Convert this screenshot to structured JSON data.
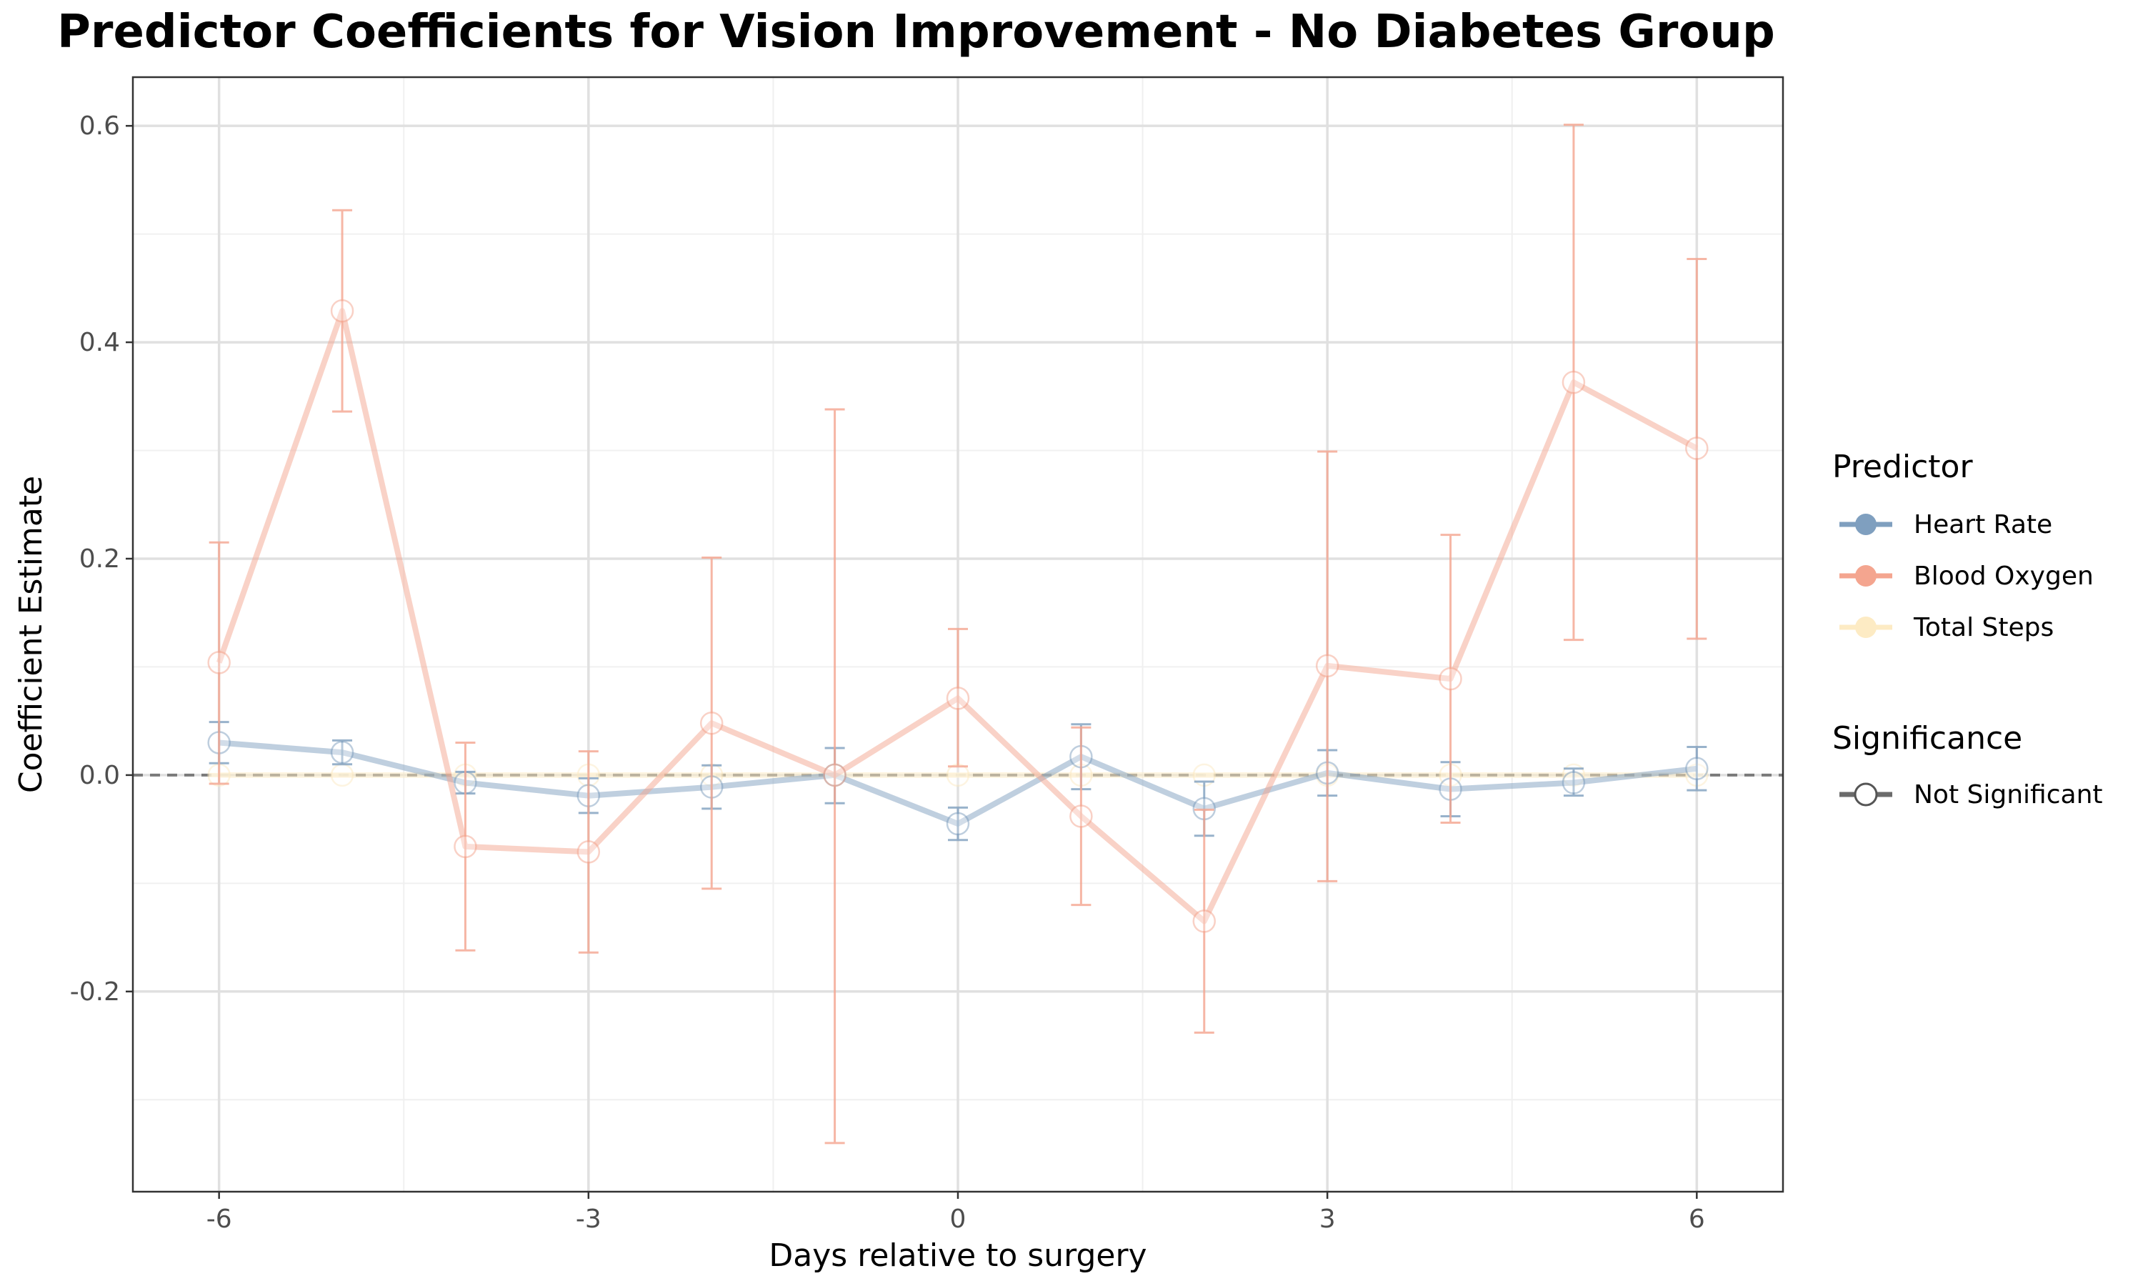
{
  "chart_data": {
    "type": "line",
    "title": "Predictor Coefficients for Vision Improvement - No Diabetes Group",
    "xlabel": "Days relative to surgery",
    "ylabel": "Coefficient Estimate",
    "x": [
      -6,
      -5,
      -4,
      -3,
      -2,
      -1,
      0,
      1,
      2,
      3,
      4,
      5,
      6
    ],
    "xlim": [
      -6.7,
      6.7
    ],
    "ylim": [
      -0.385,
      0.645
    ],
    "x_ticks": [
      -6,
      -3,
      0,
      3,
      6
    ],
    "x_tick_labels": [
      "-6",
      "-3",
      "0",
      "3",
      "6"
    ],
    "y_ticks": [
      -0.2,
      0.0,
      0.2,
      0.4,
      0.6
    ],
    "y_tick_labels": [
      "-0.2",
      "0.0",
      "0.2",
      "0.4",
      "0.6"
    ],
    "reference_line": 0,
    "grid": true,
    "legend_position": "right",
    "series": [
      {
        "name": "Heart Rate",
        "color": "#7f9fbf",
        "values": [
          0.03,
          0.021,
          -0.007,
          -0.019,
          -0.011,
          0.0,
          -0.045,
          0.017,
          -0.031,
          0.002,
          -0.013,
          -0.007,
          0.006
        ],
        "lower": [
          0.011,
          0.01,
          -0.017,
          -0.035,
          -0.031,
          -0.026,
          -0.06,
          -0.013,
          -0.056,
          -0.019,
          -0.038,
          -0.019,
          -0.014
        ],
        "upper": [
          0.049,
          0.032,
          0.003,
          -0.003,
          0.009,
          0.025,
          -0.03,
          0.047,
          -0.006,
          0.023,
          0.012,
          0.006,
          0.026
        ]
      },
      {
        "name": "Blood Oxygen",
        "color": "#f4a58f",
        "values": [
          0.104,
          0.429,
          -0.066,
          -0.071,
          0.048,
          0.0,
          0.071,
          -0.038,
          -0.135,
          0.101,
          0.089,
          0.363,
          0.302
        ],
        "lower": [
          -0.008,
          0.336,
          -0.162,
          -0.164,
          -0.105,
          -0.34,
          0.008,
          -0.12,
          -0.238,
          -0.098,
          -0.044,
          0.125,
          0.126
        ],
        "upper": [
          0.215,
          0.522,
          0.03,
          0.022,
          0.201,
          0.338,
          0.135,
          0.044,
          -0.032,
          0.299,
          0.222,
          0.601,
          0.477
        ]
      },
      {
        "name": "Total Steps",
        "color": "#fdebc4",
        "values": [
          0.0,
          0.0,
          0.0,
          0.0,
          0.0,
          0.0,
          0.0,
          0.0,
          0.0,
          0.0,
          0.0,
          0.0,
          0.0
        ],
        "lower": [
          -0.001,
          -0.001,
          -0.001,
          -0.001,
          -0.001,
          -0.001,
          -0.001,
          -0.001,
          -0.001,
          -0.001,
          -0.001,
          -0.001,
          -0.001
        ],
        "upper": [
          0.001,
          0.001,
          0.001,
          0.001,
          0.001,
          0.001,
          0.001,
          0.001,
          0.001,
          0.001,
          0.001,
          0.001,
          0.001
        ]
      }
    ],
    "legend": {
      "predictor_title": "Predictor",
      "significance_title": "Significance",
      "significance_items": [
        {
          "label": "Not Significant",
          "marker": "open-circle"
        }
      ]
    }
  }
}
